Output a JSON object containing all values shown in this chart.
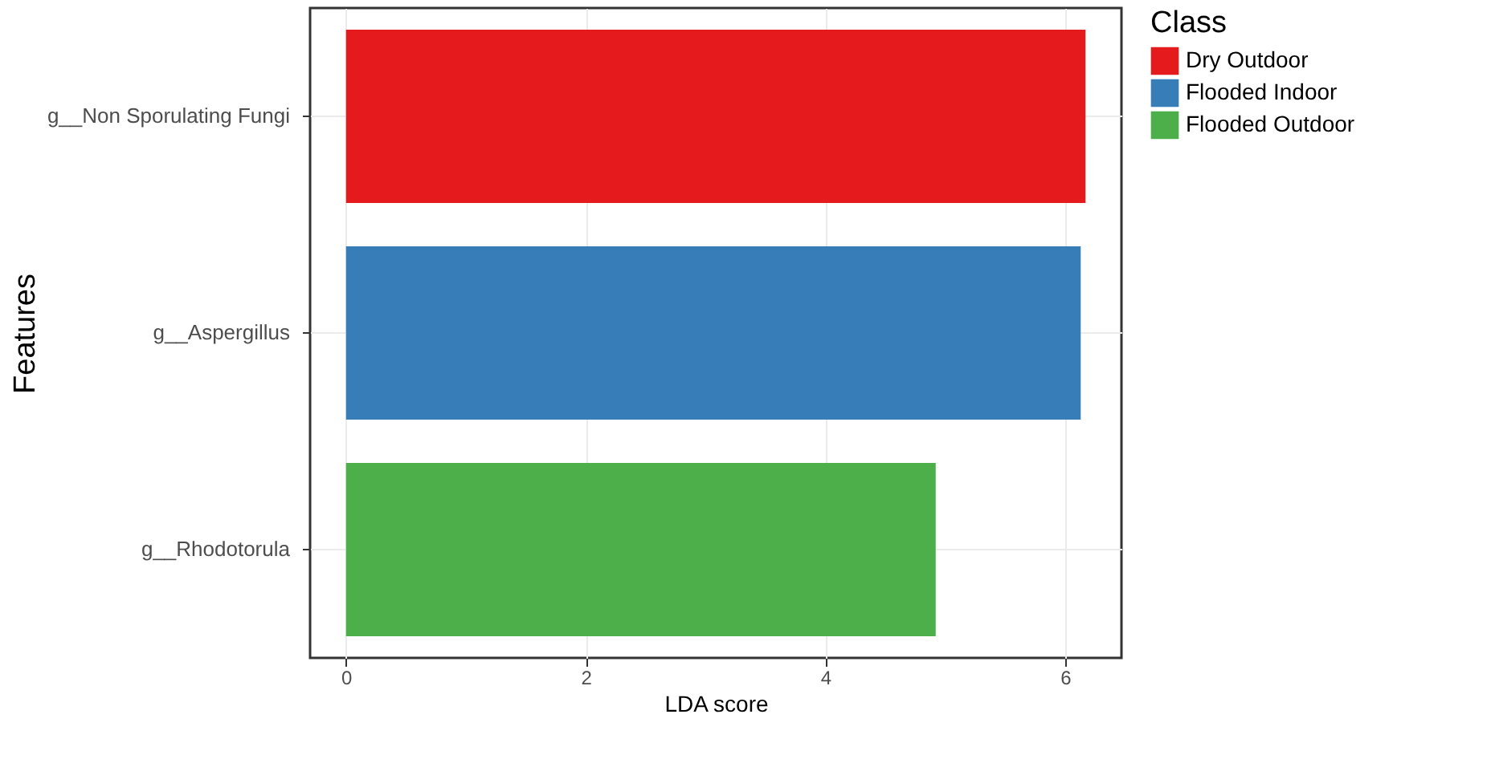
{
  "chart_data": {
    "type": "bar",
    "orientation": "horizontal",
    "xlabel": "LDA score",
    "ylabel": "Features",
    "legend_title": "Class",
    "categories": [
      "g__Non Sporulating Fungi",
      "g__Aspergillus",
      "g__Rhodotorula"
    ],
    "series": [
      {
        "name": "Dry Outdoor",
        "color": "#e41a1c",
        "values": [
          6.17,
          null,
          null
        ]
      },
      {
        "name": "Flooded Indoor",
        "color": "#377eb8",
        "values": [
          null,
          6.13,
          null
        ]
      },
      {
        "name": "Flooded Outdoor",
        "color": "#4daf4a",
        "values": [
          null,
          null,
          4.92
        ]
      }
    ],
    "xlim": [
      -0.3,
      6.47
    ],
    "xticks": [
      0,
      2,
      4,
      6
    ],
    "grid": true,
    "legend": "right"
  }
}
